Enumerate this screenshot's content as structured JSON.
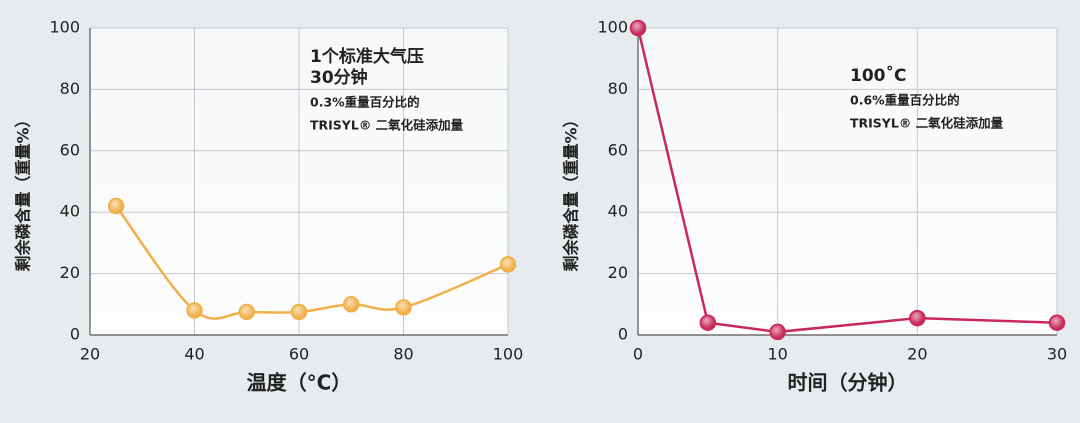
{
  "chart_data": [
    {
      "type": "line",
      "smooth": true,
      "x": [
        25,
        40,
        50,
        60,
        70,
        80,
        100
      ],
      "series": [
        {
          "color": "#f0b04a",
          "values": [
            42,
            8,
            7.5,
            7.5,
            10,
            9,
            23
          ]
        }
      ],
      "xlim": [
        20,
        100
      ],
      "xticks": [
        20,
        40,
        60,
        80,
        100
      ],
      "ylim": [
        0,
        100
      ],
      "yticks": [
        0,
        20,
        40,
        60,
        80,
        100
      ],
      "grid": true,
      "ylabel": "剩余磷含量（重量%）",
      "xlabel": "温度（°C）",
      "annotation_title": [
        "1个标准大气压",
        "30分钟"
      ],
      "annotation_body": [
        "0.3%重量百分比的",
        "TRISYL® 二氧化硅添加量"
      ]
    },
    {
      "type": "line",
      "smooth": false,
      "x": [
        0,
        5,
        10,
        20,
        30
      ],
      "series": [
        {
          "color": "#c8285a",
          "values": [
            100,
            4,
            1,
            5.5,
            4
          ]
        }
      ],
      "xlim": [
        0,
        30
      ],
      "xticks": [
        0,
        10,
        20,
        30
      ],
      "ylim": [
        0,
        100
      ],
      "yticks": [
        0,
        20,
        40,
        60,
        80,
        100
      ],
      "grid": true,
      "ylabel": "剩余磷含量（重量%）",
      "xlabel": "时间（分钟）",
      "annotation_title": [
        "100˚C"
      ],
      "annotation_body": [
        "0.6%重量百分比的",
        "TRISYL® 二氧化硅添加量"
      ]
    }
  ]
}
